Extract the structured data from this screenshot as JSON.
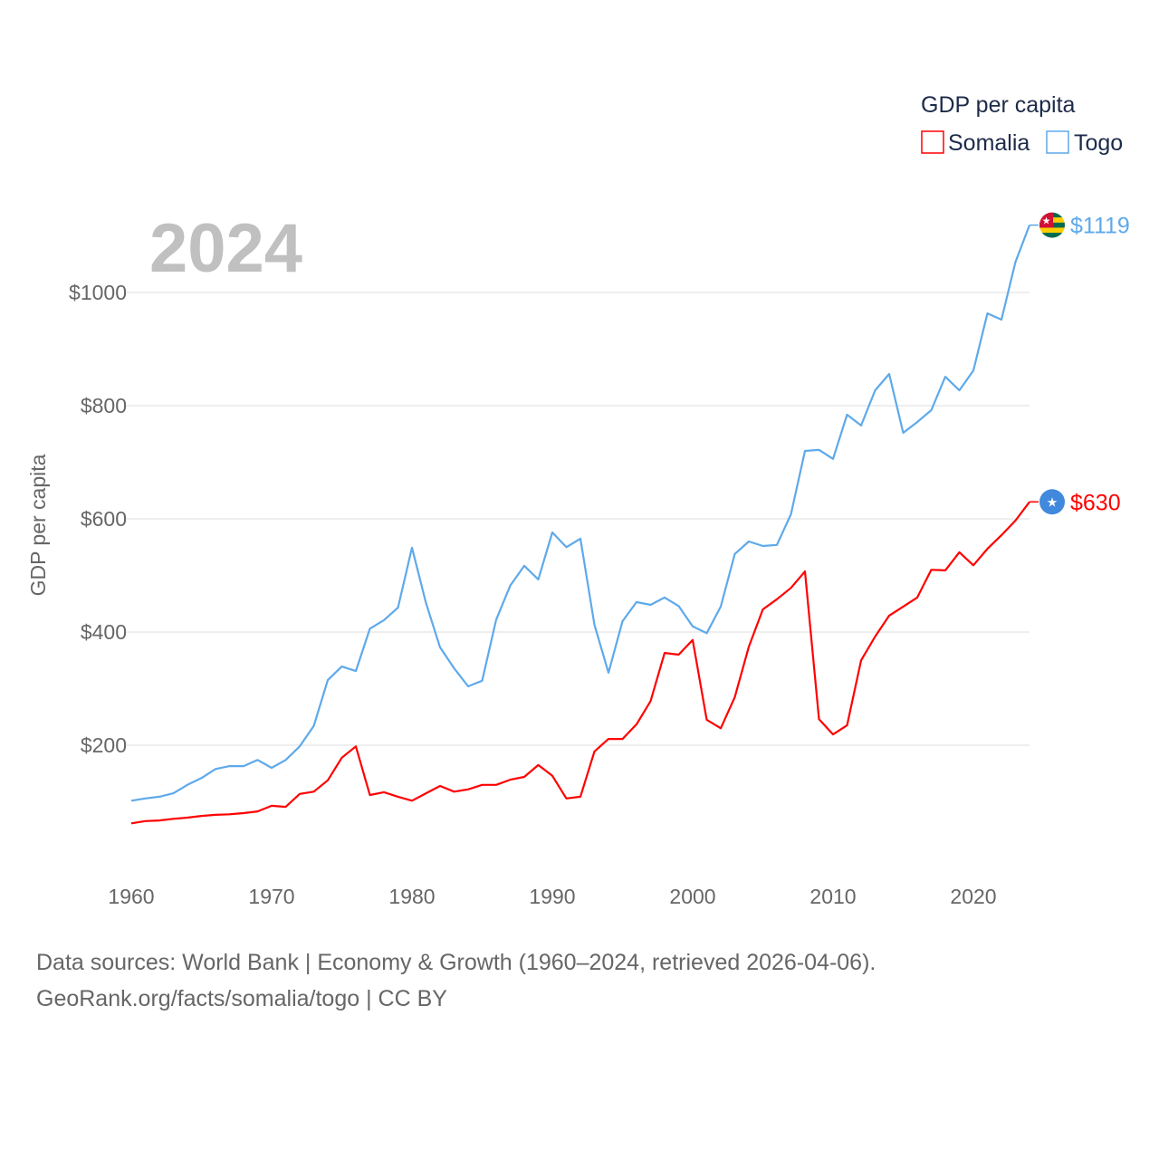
{
  "chart_data": {
    "type": "line",
    "title": "GDP per capita",
    "ylabel": "GDP per capita",
    "xlabel": "",
    "year_display": "2024",
    "xlim": [
      1960,
      2024
    ],
    "ylim": [
      0,
      1100
    ],
    "x_ticks": [
      1960,
      1970,
      1980,
      1990,
      2000,
      2010,
      2020
    ],
    "y_ticks": [
      200,
      400,
      600,
      800,
      1000
    ],
    "y_tick_labels": [
      "$200",
      "$400",
      "$600",
      "$800",
      "$1000"
    ],
    "grid": true,
    "legend": {
      "title": "GDP per capita",
      "placement": "top-right"
    },
    "x": [
      1960,
      1961,
      1962,
      1963,
      1964,
      1965,
      1966,
      1967,
      1968,
      1969,
      1970,
      1971,
      1972,
      1973,
      1974,
      1975,
      1976,
      1977,
      1978,
      1979,
      1980,
      1981,
      1982,
      1983,
      1984,
      1985,
      1986,
      1987,
      1988,
      1989,
      1990,
      1991,
      1992,
      1993,
      1994,
      1995,
      1996,
      1997,
      1998,
      1999,
      2000,
      2001,
      2002,
      2003,
      2004,
      2005,
      2006,
      2007,
      2008,
      2009,
      2010,
      2011,
      2012,
      2013,
      2014,
      2015,
      2016,
      2017,
      2018,
      2019,
      2020,
      2021,
      2022,
      2023,
      2024
    ],
    "series": [
      {
        "name": "Somalia",
        "color": "#ff0000",
        "end_label": "$630",
        "flag": "somalia-flag",
        "values": [
          62,
          66,
          67,
          70,
          72,
          75,
          77,
          78,
          80,
          83,
          93,
          91,
          114,
          118,
          138,
          178,
          198,
          112,
          117,
          109,
          102,
          115,
          128,
          118,
          122,
          130,
          130,
          139,
          144,
          165,
          146,
          106,
          109,
          189,
          211,
          211,
          237,
          278,
          363,
          360,
          386,
          245,
          230,
          285,
          374,
          440,
          458,
          478,
          507,
          246,
          219,
          235,
          350,
          392,
          429,
          445,
          461,
          510,
          509,
          541,
          518,
          547,
          571,
          597,
          630
        ]
      },
      {
        "name": "Togo",
        "color": "#5ea9ea",
        "end_label": "$1119",
        "flag": "togo-flag",
        "values": [
          102,
          106,
          109,
          115,
          130,
          142,
          158,
          163,
          163,
          174,
          160,
          174,
          198,
          234,
          315,
          339,
          331,
          406,
          421,
          443,
          549,
          451,
          373,
          336,
          304,
          314,
          422,
          482,
          517,
          493,
          576,
          550,
          565,
          413,
          328,
          419,
          453,
          448,
          461,
          446,
          410,
          398,
          445,
          538,
          560,
          552,
          554,
          608,
          720,
          722,
          706,
          784,
          765,
          827,
          856,
          752,
          771,
          792,
          851,
          827,
          862,
          963,
          952,
          1054,
          1119
        ]
      }
    ]
  },
  "footer": {
    "line1": "Data sources: World Bank | Economy & Growth (1960–2024, retrieved 2026-04-06).",
    "line2": "GeoRank.org/facts/somalia/togo | CC BY"
  }
}
